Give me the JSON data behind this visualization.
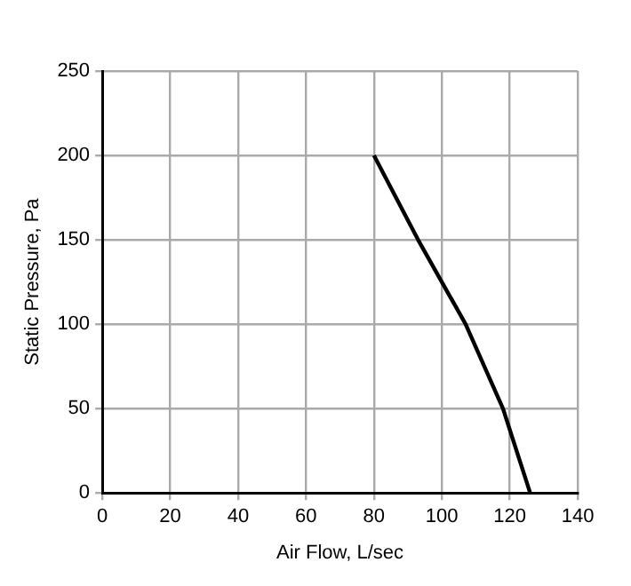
{
  "chart_data": {
    "type": "line",
    "xlabel": "Air Flow, L/sec",
    "ylabel": "Static Pressure, Pa",
    "x": [
      80,
      93,
      107,
      118,
      126
    ],
    "series": [
      {
        "color": "#000000",
        "values": [
          200,
          150,
          100,
          50,
          0
        ]
      }
    ],
    "xlim": [
      0,
      140
    ],
    "xticks": [
      0,
      20,
      40,
      60,
      80,
      100,
      120,
      140
    ],
    "ylim": [
      0,
      250
    ],
    "yticks": [
      0,
      50,
      100,
      150,
      200,
      250
    ],
    "grid": true,
    "legend": false,
    "marker": "none",
    "line_style": "solid"
  }
}
